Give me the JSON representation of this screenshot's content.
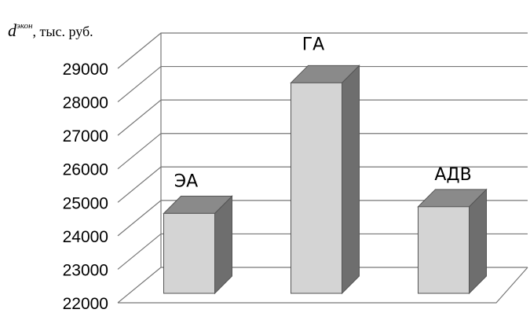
{
  "chart_data": {
    "type": "bar",
    "style": "3d-column",
    "ylabel": {
      "symbol": "d",
      "superscript": "экон",
      "unit": ", тыс. руб."
    },
    "categories": [
      "ЭА",
      "ГА",
      "АДВ"
    ],
    "values": [
      24200,
      28100,
      24400
    ],
    "ylim": [
      22000,
      29000
    ],
    "yticks": [
      "22000",
      "23000",
      "24000",
      "25000",
      "26000",
      "27000",
      "28000",
      "29000"
    ],
    "grid": true,
    "legend": "none",
    "colors": {
      "bar_front": "#d4d4d4",
      "bar_side": "#6e6e6e",
      "bar_top": "#8a8a8a",
      "grid": "#777777"
    }
  }
}
